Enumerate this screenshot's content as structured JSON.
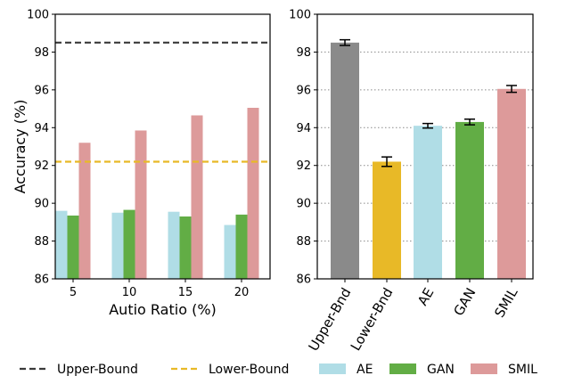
{
  "chart_data": [
    {
      "type": "bar",
      "xlabel": "Autio Ratio (%)",
      "ylabel": "Accuracy (%)",
      "ylim": [
        86,
        100
      ],
      "yticks": [
        "86",
        "88",
        "90",
        "92",
        "94",
        "96",
        "98",
        "100"
      ],
      "categories": [
        "5",
        "10",
        "15",
        "20"
      ],
      "grid": false,
      "series": [
        {
          "name": "AE",
          "color": "#b0dde6",
          "values": [
            89.6,
            89.5,
            89.55,
            88.85
          ]
        },
        {
          "name": "GAN",
          "color": "#62ad45",
          "values": [
            89.35,
            89.65,
            89.3,
            89.4
          ]
        },
        {
          "name": "SMIL",
          "color": "#dd9a9a",
          "values": [
            93.2,
            93.85,
            94.65,
            95.05
          ]
        }
      ],
      "reference_lines": [
        {
          "name": "Upper-Bound",
          "value": 98.5,
          "color": "#3a3a3a",
          "style": "dashed"
        },
        {
          "name": "Lower-Bound",
          "value": 92.2,
          "color": "#e8b927",
          "style": "dashed"
        }
      ]
    },
    {
      "type": "bar",
      "ylim": [
        86,
        100
      ],
      "yticks": [
        "86",
        "88",
        "90",
        "92",
        "94",
        "96",
        "98",
        "100"
      ],
      "grid": "horizontal dotted",
      "categories": [
        "Upper-Bnd",
        "Lower-Bnd",
        "AE",
        "GAN",
        "SMIL"
      ],
      "values": [
        98.5,
        92.2,
        94.1,
        94.3,
        96.05
      ],
      "errors": [
        0.15,
        0.25,
        0.12,
        0.15,
        0.18
      ],
      "colors": [
        "#8a8a8a",
        "#e8b927",
        "#b0dde6",
        "#62ad45",
        "#dd9a9a"
      ]
    }
  ],
  "legend": {
    "placement": "bottom",
    "items": [
      {
        "label": "Upper-Bound",
        "kind": "dashed-line",
        "color": "#3a3a3a"
      },
      {
        "label": "Lower-Bound",
        "kind": "dashed-line",
        "color": "#e8b927"
      },
      {
        "label": "AE",
        "kind": "patch",
        "color": "#b0dde6"
      },
      {
        "label": "GAN",
        "kind": "patch",
        "color": "#62ad45"
      },
      {
        "label": "SMIL",
        "kind": "patch",
        "color": "#dd9a9a"
      }
    ]
  }
}
